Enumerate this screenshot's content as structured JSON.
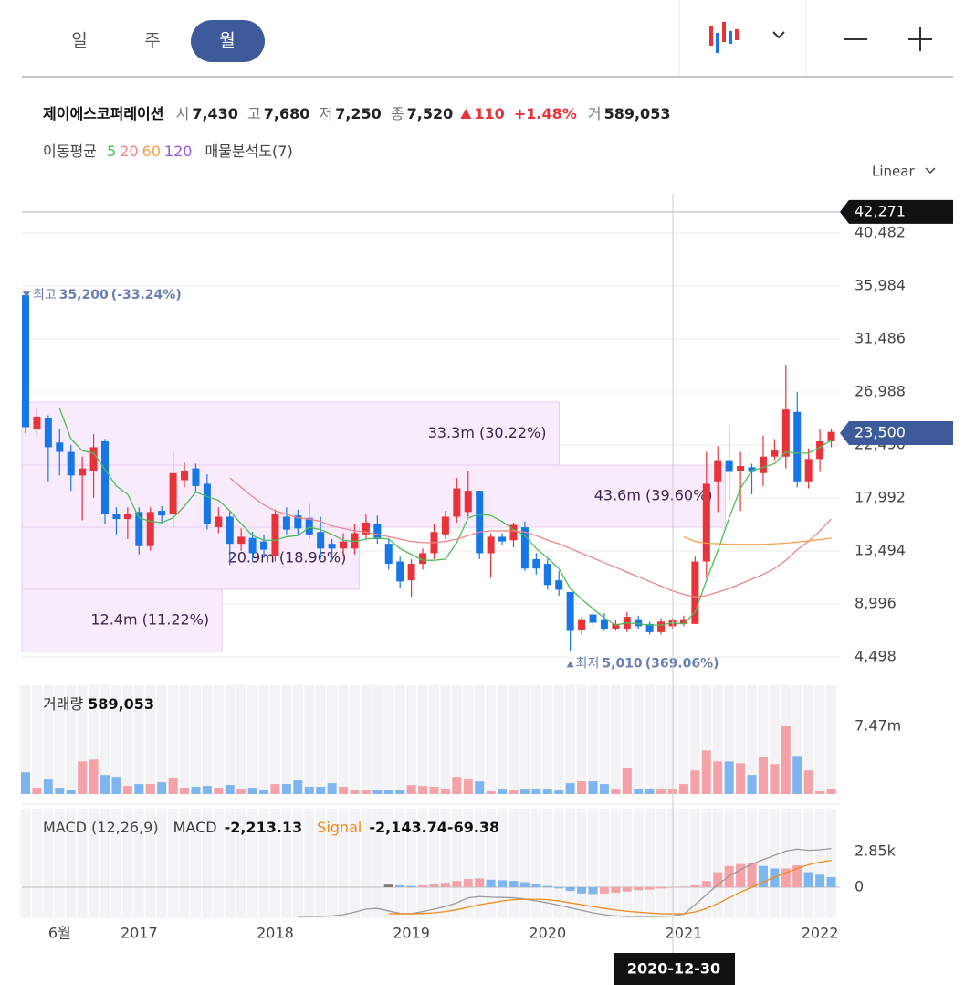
{
  "ui": {
    "tabs": [
      "일",
      "주",
      "월"
    ],
    "selected_tab": 2,
    "scale": "Linear",
    "crosshair_date": "2020-12-30"
  },
  "quote": {
    "name": "제이에스코퍼레이션",
    "items": [
      {
        "label": "시",
        "value": "7,430"
      },
      {
        "label": "고",
        "value": "7,680"
      },
      {
        "label": "저",
        "value": "7,250"
      },
      {
        "label": "종",
        "value": "7,520"
      }
    ],
    "change": "110",
    "change_pct": "+1.48%",
    "volume_label": "거",
    "volume": "589,053"
  },
  "ma_legend": {
    "label": "이동평균",
    "profile_label": "매물분석도(7)"
  },
  "chart_data": [
    {
      "type": "candlestick",
      "categories": [
        null,
        null,
        null,
        "6월",
        null,
        null,
        null,
        null,
        null,
        null,
        "2017",
        null,
        null,
        null,
        null,
        null,
        null,
        null,
        null,
        null,
        null,
        null,
        "2018",
        null,
        null,
        null,
        null,
        null,
        null,
        null,
        null,
        null,
        null,
        null,
        "2019",
        null,
        null,
        null,
        null,
        null,
        null,
        null,
        null,
        null,
        null,
        null,
        "2020",
        null,
        null,
        null,
        null,
        null,
        null,
        null,
        null,
        null,
        null,
        null,
        "2021",
        null,
        null,
        null,
        null,
        null,
        null,
        null,
        null,
        null,
        null,
        null,
        "2022",
        null
      ],
      "open": [
        35200,
        23800,
        24800,
        22700,
        21900,
        19900,
        20300,
        22800,
        16600,
        16200,
        16800,
        13900,
        16900,
        16600,
        19500,
        20500,
        19200,
        15500,
        16400,
        14100,
        14600,
        14300,
        13100,
        16400,
        16500,
        16300,
        15100,
        14100,
        13700,
        13700,
        14900,
        15800,
        14100,
        12600,
        11000,
        12400,
        13300,
        14900,
        16400,
        16800,
        18600,
        13300,
        14700,
        14400,
        15500,
        12800,
        12400,
        11000,
        10000,
        6800,
        8100,
        7700,
        6900,
        6900,
        7700,
        7300,
        6600,
        7100,
        7300,
        7300,
        12600,
        19400,
        21200,
        20300,
        20600,
        20100,
        21500,
        21500,
        25300,
        19400,
        21300,
        22800
      ],
      "high": [
        35200,
        25700,
        25000,
        23800,
        22500,
        21500,
        23400,
        23000,
        17200,
        17200,
        17200,
        17200,
        17300,
        21900,
        21000,
        20900,
        20000,
        17200,
        16900,
        15400,
        15100,
        14900,
        17000,
        17200,
        17000,
        17500,
        16400,
        14500,
        15000,
        15800,
        16600,
        16500,
        14600,
        13000,
        12800,
        13700,
        15800,
        16900,
        19700,
        20300,
        18600,
        15000,
        15000,
        15900,
        16000,
        13300,
        12800,
        11800,
        10000,
        7900,
        8600,
        8200,
        7600,
        8300,
        8000,
        7500,
        7800,
        7800,
        8000,
        13000,
        21900,
        22400,
        24100,
        21900,
        20900,
        23300,
        23000,
        29300,
        27000,
        22200,
        23800,
        23800
      ],
      "low": [
        23500,
        23200,
        19400,
        19900,
        18600,
        16100,
        18000,
        15800,
        14900,
        14500,
        13200,
        13500,
        15800,
        15500,
        18900,
        18400,
        15300,
        15000,
        12300,
        13500,
        12600,
        12900,
        12600,
        14900,
        14900,
        14500,
        12800,
        12600,
        13000,
        13200,
        14500,
        14100,
        11900,
        10300,
        9600,
        11900,
        12800,
        14500,
        15900,
        16400,
        12800,
        11200,
        14000,
        13800,
        11800,
        11500,
        10200,
        9700,
        5010,
        6400,
        7000,
        6700,
        6700,
        6600,
        6900,
        6400,
        6400,
        6900,
        7100,
        7300,
        11200,
        16800,
        17800,
        16900,
        18300,
        19000,
        21200,
        20500,
        18900,
        18800,
        20200,
        22300
      ],
      "close": [
        24000,
        24900,
        22300,
        21900,
        19900,
        20500,
        22300,
        16600,
        16200,
        16600,
        13900,
        16800,
        16500,
        20100,
        20300,
        19000,
        15800,
        16400,
        14100,
        14700,
        13300,
        13600,
        16600,
        15300,
        15400,
        14900,
        13700,
        13700,
        14300,
        15000,
        15900,
        14500,
        12400,
        10900,
        12400,
        13300,
        15100,
        16400,
        18800,
        18600,
        13300,
        14700,
        14300,
        15700,
        12000,
        12000,
        10600,
        10200,
        6700,
        7700,
        7400,
        6900,
        7300,
        7900,
        7100,
        6600,
        7500,
        7600,
        7700,
        12600,
        19200,
        21200,
        20200,
        20700,
        20200,
        21500,
        22100,
        25500,
        19400,
        21300,
        22800,
        23600
      ],
      "up_color": "#e8333b",
      "down_color": "#1877e6",
      "ylim": [
        2480,
        43580
      ],
      "yticks": [
        {
          "value": 40482,
          "label": "40,482"
        },
        {
          "value": 35984,
          "label": "35,984"
        },
        {
          "value": 31486,
          "label": "31,486"
        },
        {
          "value": 26988,
          "label": "26,988"
        },
        {
          "value": 22490,
          "label": "22,490"
        },
        {
          "value": 17992,
          "label": "17,992"
        },
        {
          "value": 13494,
          "label": "13,494"
        },
        {
          "value": 8996,
          "label": "8,996"
        },
        {
          "value": 4498,
          "label": "4,498"
        }
      ],
      "grid": true,
      "moving_averages": [
        {
          "name": "5",
          "color": "#4cbd55",
          "values": [
            null,
            null,
            null,
            25600,
            23000,
            22000,
            21800,
            20400,
            19000,
            18300,
            16300,
            16000,
            15900,
            16300,
            17300,
            18500,
            18100,
            17800,
            16900,
            15800,
            14800,
            14400,
            14400,
            14700,
            14800,
            15500,
            15300,
            14900,
            14400,
            14300,
            14500,
            14600,
            14500,
            13700,
            13200,
            12700,
            12700,
            12800,
            14200,
            16300,
            16600,
            16500,
            16000,
            15300,
            14800,
            13700,
            12900,
            12000,
            10300,
            9400,
            8600,
            7800,
            7200,
            7400,
            7300,
            7200,
            7200,
            7400,
            7300,
            8300,
            11000,
            13500,
            16300,
            18800,
            20300,
            20600,
            20900,
            21900,
            21800,
            21800,
            22300,
            22900
          ]
        },
        {
          "name": "20",
          "color": "#f08585",
          "values": [
            null,
            null,
            null,
            null,
            null,
            null,
            null,
            null,
            null,
            null,
            null,
            null,
            null,
            null,
            null,
            null,
            null,
            null,
            19700,
            18900,
            18100,
            17400,
            16900,
            16600,
            16300,
            16200,
            16000,
            15600,
            15400,
            15200,
            15100,
            14900,
            14700,
            14500,
            14300,
            14200,
            14200,
            14300,
            14500,
            14800,
            15100,
            15200,
            15200,
            15200,
            15100,
            14800,
            14400,
            14100,
            13700,
            13300,
            12900,
            12500,
            12100,
            11700,
            11300,
            10900,
            10500,
            10100,
            9800,
            9600,
            9700,
            10000,
            10300,
            10700,
            11100,
            11500,
            12000,
            12700,
            13600,
            14300,
            15200,
            16200
          ]
        },
        {
          "name": "60",
          "color": "#f5a04e",
          "values": [
            null,
            null,
            null,
            null,
            null,
            null,
            null,
            null,
            null,
            null,
            null,
            null,
            null,
            null,
            null,
            null,
            null,
            null,
            null,
            null,
            null,
            null,
            null,
            null,
            null,
            null,
            null,
            null,
            null,
            null,
            null,
            null,
            null,
            null,
            null,
            null,
            null,
            null,
            null,
            null,
            null,
            null,
            null,
            null,
            null,
            null,
            null,
            null,
            null,
            null,
            null,
            null,
            null,
            null,
            null,
            null,
            null,
            null,
            14700,
            14300,
            14150,
            14100,
            14050,
            14050,
            14050,
            14050,
            14100,
            14150,
            14250,
            14350,
            14450,
            14600
          ]
        },
        {
          "name": "120",
          "color": "#9a5ad6",
          "values": [
            null,
            null,
            null,
            null,
            null,
            null,
            null,
            null,
            null,
            null,
            null,
            null,
            null,
            null,
            null,
            null,
            null,
            null,
            null,
            null,
            null,
            null,
            null,
            null,
            null,
            null,
            null,
            null,
            null,
            null,
            null,
            null,
            null,
            null,
            null,
            null,
            null,
            null,
            null,
            null,
            null,
            null,
            null,
            null,
            null,
            null,
            null,
            null,
            null,
            null,
            null,
            null,
            null,
            null,
            null,
            null,
            null,
            null,
            null,
            null,
            null,
            null,
            null,
            null,
            null,
            null,
            null,
            null,
            null,
            null,
            null,
            null
          ]
        }
      ],
      "extremes": [
        {
          "label": "최고",
          "value": 35200,
          "value_label": "35,200",
          "change": "(-33.24%)"
        },
        {
          "label": "최저",
          "value": 5010,
          "value_label": "5,010",
          "change": "(369.06%)"
        }
      ],
      "price_lines": [
        {
          "value": 42271,
          "label": "42,271",
          "color": "#111111"
        },
        {
          "value": 23500,
          "label": "23,500",
          "color": "#3d5a9b"
        }
      ],
      "volume_profile": {
        "bins": [
          4962,
          10235,
          15508,
          20782,
          26133
        ],
        "values": [
          12400000,
          20900000,
          43600000,
          33300000
        ],
        "value_labels": [
          "12.4m (11.22%)",
          "20.9m (18.96%)",
          "43.6m (39.60%)",
          "33.3m (30.22%)"
        ],
        "xlim": [
          0,
          50700000
        ]
      }
    },
    {
      "type": "bar",
      "title": "거래량",
      "summary": "589,053",
      "values": [
        2400000,
        700000,
        1600000,
        700000,
        400000,
        3600000,
        3800000,
        2100000,
        1900000,
        900000,
        1100000,
        1100000,
        1300000,
        1800000,
        700000,
        800000,
        900000,
        700000,
        1000000,
        500000,
        700000,
        400000,
        1100000,
        1100000,
        1500000,
        800000,
        800000,
        1200000,
        800000,
        400000,
        400000,
        400000,
        400000,
        400000,
        1000000,
        900000,
        800000,
        600000,
        1900000,
        1600000,
        1400000,
        300000,
        500000,
        400000,
        500000,
        500000,
        500000,
        400000,
        1200000,
        1400000,
        1400000,
        1100000,
        500000,
        2900000,
        500000,
        500000,
        500000,
        500000,
        1100000,
        2600000,
        4800000,
        3600000,
        3600000,
        3400000,
        2100000,
        4100000,
        3300000,
        7470000,
        4200000,
        2600000,
        300000,
        589053
      ],
      "ylim": [
        0,
        12000000
      ],
      "yticks": [
        {
          "value": 7470000,
          "label": "7.47m"
        }
      ],
      "up_color": "#f4a1a7",
      "down_color": "#7db5f0"
    },
    {
      "type": "macd",
      "title": "MACD (12,26,9)",
      "series": [
        {
          "name": "MACD",
          "color": "#9a9a9a",
          "summary": "-2,213.13",
          "values": [
            null,
            null,
            null,
            null,
            null,
            null,
            null,
            null,
            null,
            null,
            null,
            null,
            null,
            null,
            null,
            null,
            null,
            null,
            null,
            null,
            null,
            null,
            null,
            null,
            -2340,
            -2340,
            -2330,
            -2300,
            -2200,
            -2000,
            -1750,
            -1700,
            -1900,
            -2100,
            -2120,
            -1950,
            -1750,
            -1550,
            -1250,
            -850,
            -750,
            -800,
            -820,
            -850,
            -950,
            -1100,
            -1250,
            -1450,
            -1650,
            -1850,
            -2050,
            -2200,
            -2300,
            -2340,
            -2340,
            -2340,
            -2330,
            -2300,
            -2150,
            -1400,
            -600,
            200,
            900,
            1400,
            1850,
            2200,
            2550,
            2900,
            3050,
            2950,
            3000,
            3100
          ]
        },
        {
          "name": "Signal",
          "color": "#f08a1c",
          "summary": "-2,143.74",
          "values": [
            null,
            null,
            null,
            null,
            null,
            null,
            null,
            null,
            null,
            null,
            null,
            null,
            null,
            null,
            null,
            null,
            null,
            null,
            null,
            null,
            null,
            null,
            null,
            null,
            null,
            null,
            null,
            null,
            null,
            null,
            null,
            null,
            -2120,
            -2130,
            -2130,
            -2100,
            -2050,
            -1950,
            -1800,
            -1600,
            -1400,
            -1250,
            -1100,
            -1000,
            -960,
            -960,
            -1000,
            -1100,
            -1250,
            -1400,
            -1550,
            -1700,
            -1820,
            -1920,
            -2000,
            -2070,
            -2120,
            -2130,
            -2130,
            -1980,
            -1700,
            -1300,
            -850,
            -400,
            0,
            400,
            800,
            1150,
            1500,
            1800,
            2000,
            2150
          ]
        }
      ],
      "histogram": {
        "summary": "-69.38",
        "up_color": "#f4a1a7",
        "down_color": "#7db5f0",
        "values": [
          null,
          null,
          null,
          null,
          null,
          null,
          null,
          null,
          null,
          null,
          null,
          null,
          null,
          null,
          null,
          null,
          null,
          null,
          null,
          null,
          null,
          null,
          null,
          null,
          null,
          null,
          null,
          null,
          null,
          null,
          null,
          null,
          200,
          150,
          100,
          150,
          250,
          350,
          500,
          650,
          700,
          600,
          550,
          500,
          400,
          250,
          100,
          -100,
          -300,
          -500,
          -550,
          -500,
          -450,
          -350,
          -250,
          -200,
          -100,
          -50,
          50,
          150,
          500,
          1200,
          1700,
          1850,
          1900,
          1700,
          1500,
          1500,
          1750,
          1200,
          1000,
          800
        ]
      },
      "ylim": [
        -2490,
        6290
      ],
      "yticks": [
        {
          "value": 2850,
          "label": "2.85k"
        },
        0
      ]
    }
  ]
}
